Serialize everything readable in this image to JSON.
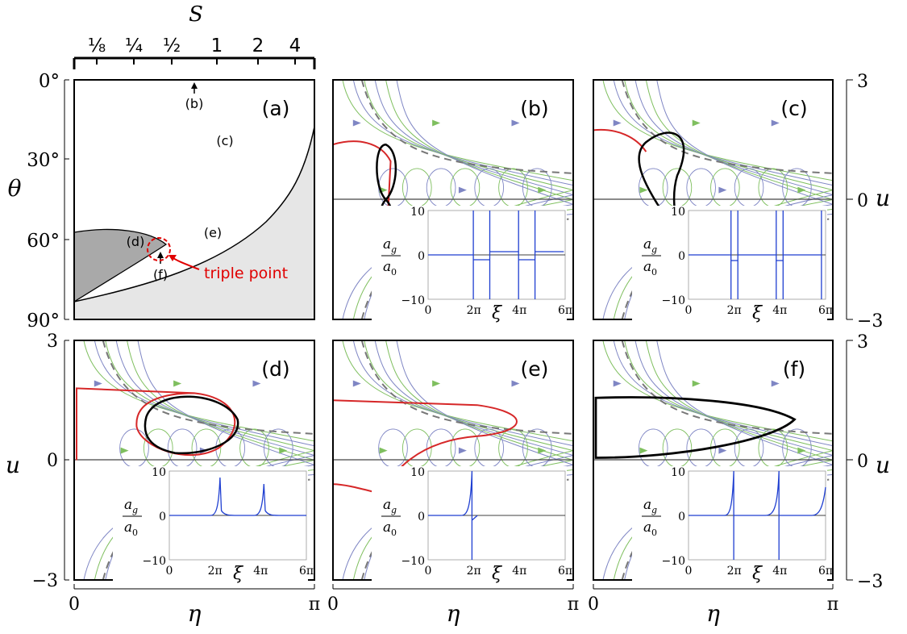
{
  "top_axis": {
    "label": "S",
    "ticks": [
      "⅛",
      "¼",
      "½",
      "1",
      "2",
      "4"
    ]
  },
  "panel_a": {
    "label": "(a)",
    "y_axis_label": "θ",
    "y_ticks": [
      "0°",
      "30°",
      "60°",
      "90°"
    ],
    "region_labels": [
      "(b)",
      "(c)",
      "(d)",
      "(e)",
      "(f)"
    ],
    "annotation": "triple point"
  },
  "panels": [
    {
      "label": "(b)"
    },
    {
      "label": "(c)"
    },
    {
      "label": "(d)"
    },
    {
      "label": "(e)"
    },
    {
      "label": "(f)"
    }
  ],
  "axes": {
    "u_label": "u",
    "eta_label": "η",
    "u_ticks_right": [
      "3",
      "0",
      "−3"
    ],
    "u_ticks_left": [
      "3",
      "0",
      "−3"
    ],
    "eta_ticks": [
      "0",
      "π"
    ],
    "right_zero": "0"
  },
  "inset": {
    "y_num": "a",
    "y_num_sub": "g",
    "y_den": "a",
    "y_den_sub": "0",
    "y_ticks": [
      "10",
      "0",
      "−10"
    ],
    "x_label": "ξ",
    "x_ticks": [
      "0",
      "2π",
      "4π",
      "6π"
    ]
  },
  "colors": {
    "separatrix": "#d62728",
    "orbit": "#000000",
    "green_flow": "#7fbf5f",
    "blue_flow": "#7f86c4",
    "inset_line": "#1f3fd1",
    "shade_dark": "#a9a9a9",
    "shade_light": "#e6e6e6",
    "annotation": "#e00000"
  }
}
